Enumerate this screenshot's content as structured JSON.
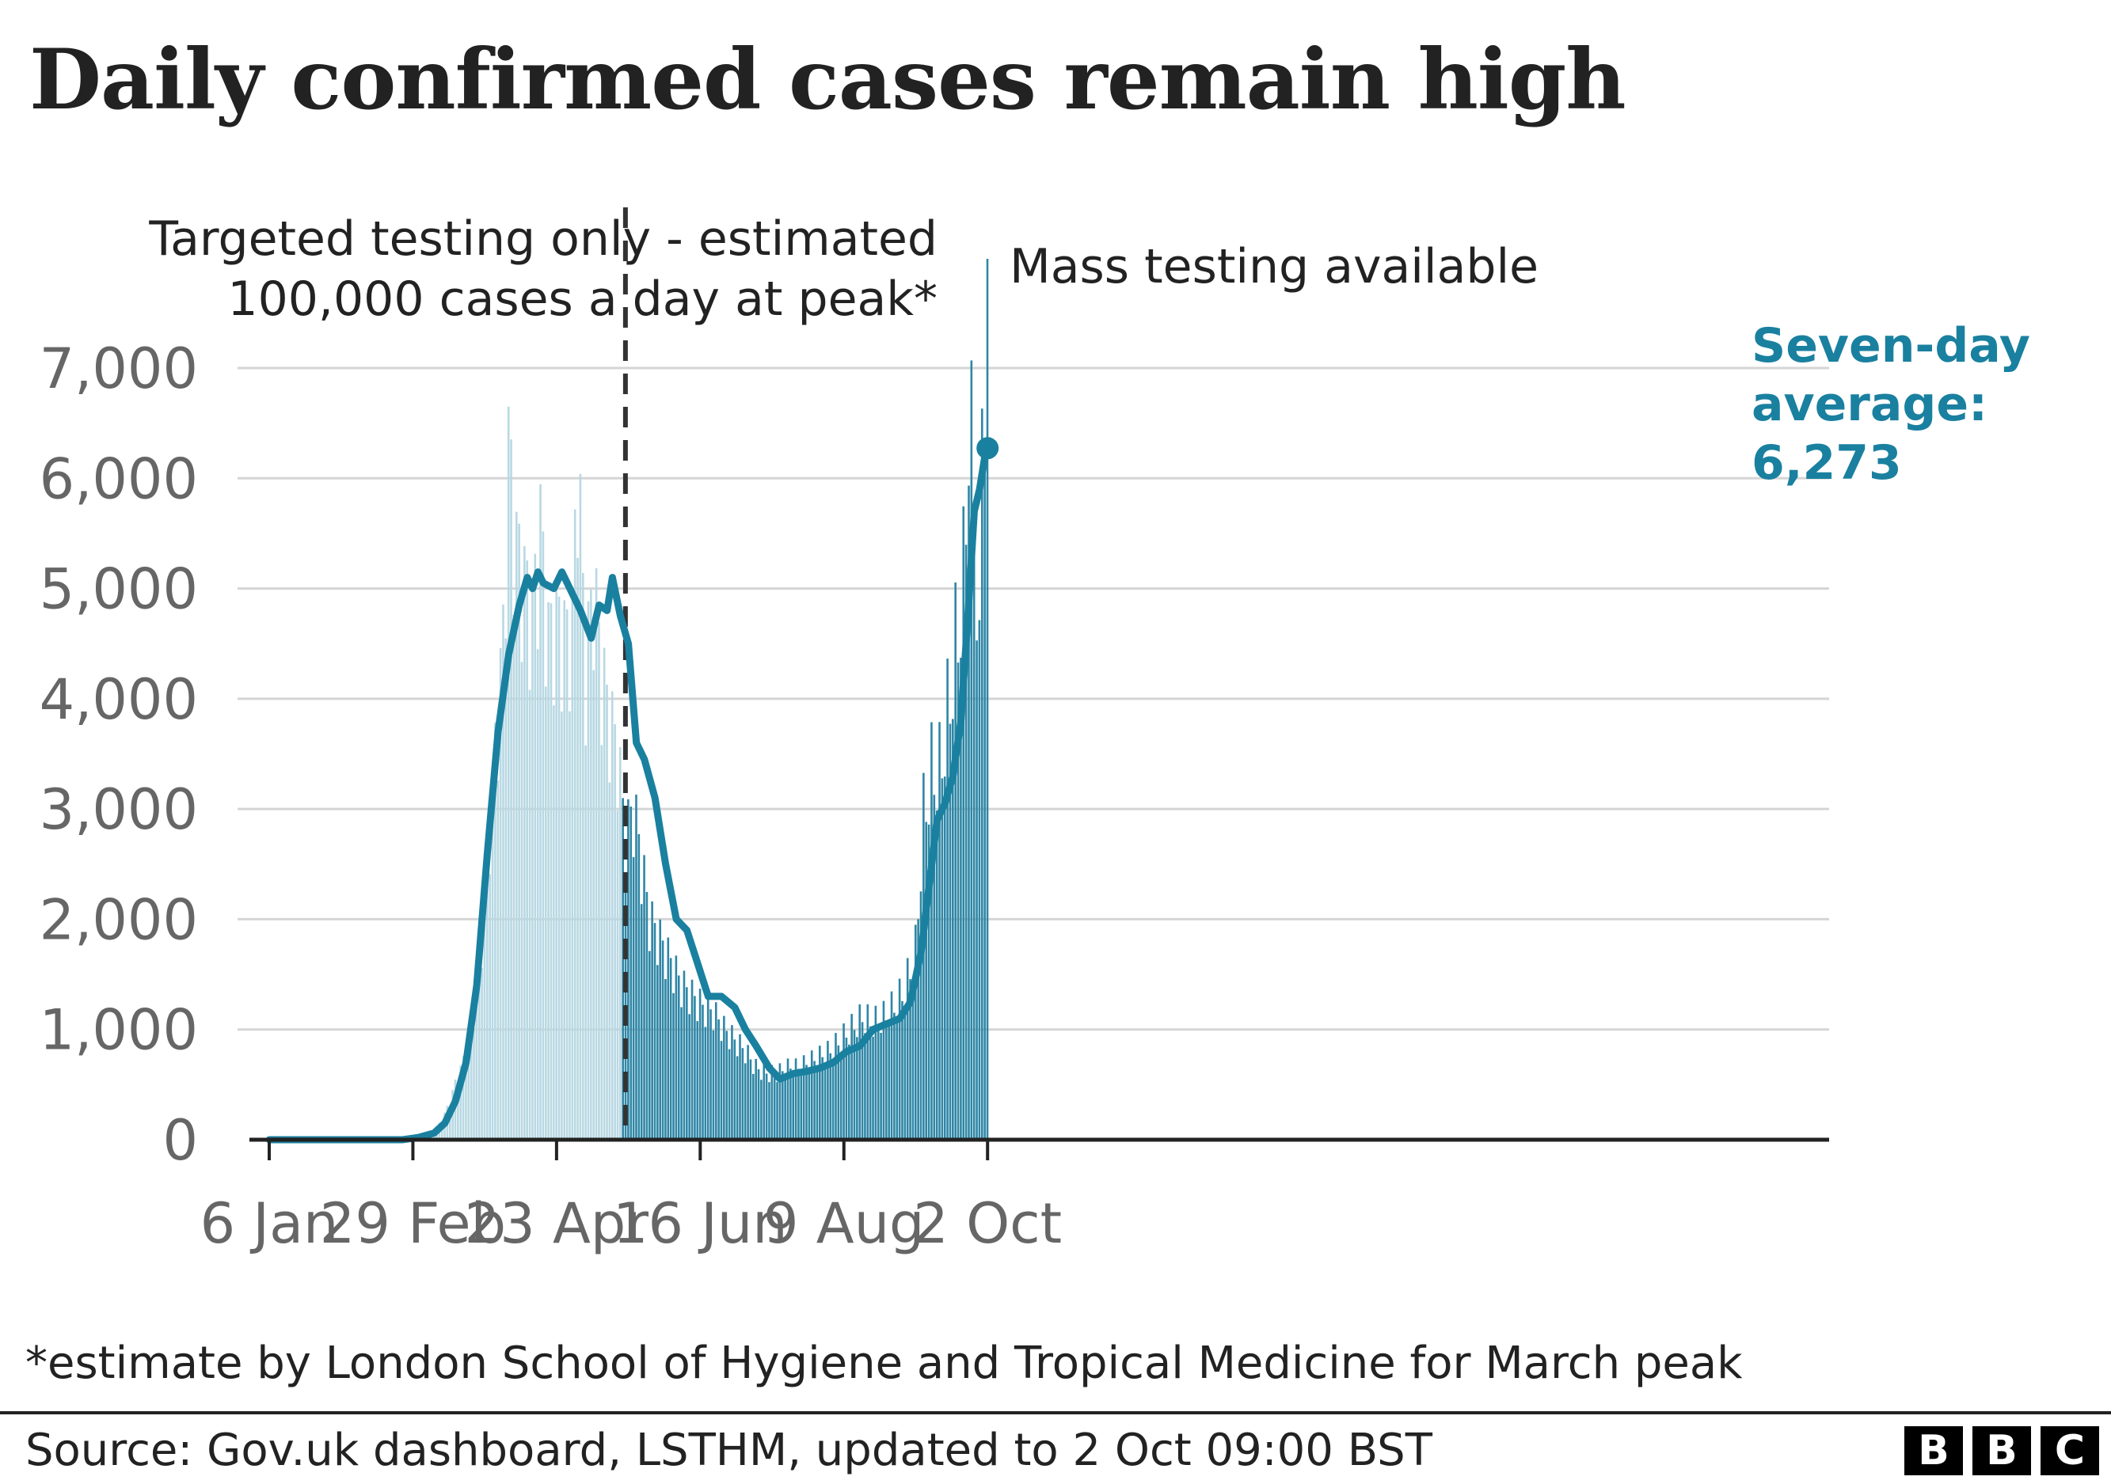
{
  "title": "Daily confirmed cases remain high",
  "annotations": {
    "before_line1": "Targeted testing only - estimated",
    "before_line2": "100,000 cases a day at peak*",
    "after": "Mass testing available",
    "average_line1": "Seven-day",
    "average_line2": "average:",
    "average_line3": "6,273"
  },
  "footnote": "*estimate by London School of Hygiene and Tropical Medicine for March peak",
  "source": "Source: Gov.uk dashboard, LSTHM, updated to 2 Oct 09:00 BST",
  "logo": [
    "B",
    "B",
    "C"
  ],
  "colors": {
    "bar_targeted": "#b8d8e3",
    "bar_mass": "#2e86a5",
    "average_line": "#1a80a0",
    "grid": "#d5d5d5",
    "divider": "#333333",
    "axis": "#222222"
  },
  "chart_data": {
    "type": "bar",
    "xlabel": "",
    "ylabel": "",
    "ylim": [
      0,
      7000
    ],
    "yticks": [
      0,
      1000,
      2000,
      3000,
      4000,
      5000,
      6000,
      7000
    ],
    "ytick_labels": [
      "0",
      "1,000",
      "2,000",
      "3,000",
      "4,000",
      "5,000",
      "6,000",
      "7,000"
    ],
    "xticks": [
      {
        "date": "2020-01-06",
        "label": "6 Jan"
      },
      {
        "date": "2020-02-29",
        "label": "29 Feb"
      },
      {
        "date": "2020-04-23",
        "label": "23 Apr"
      },
      {
        "date": "2020-06-16",
        "label": "16 Jun"
      },
      {
        "date": "2020-08-09",
        "label": "9 Aug"
      },
      {
        "date": "2020-10-02",
        "label": "2 Oct"
      }
    ],
    "x_range": [
      "2020-01-06",
      "2020-10-20"
    ],
    "testing_change_date": "2020-05-18",
    "grid": true,
    "series": [
      {
        "name": "Daily confirmed cases",
        "points": [
          [
            "2020-01-06",
            0
          ],
          [
            "2020-02-25",
            0
          ],
          [
            "2020-03-01",
            15
          ],
          [
            "2020-03-04",
            40
          ],
          [
            "2020-03-07",
            70
          ],
          [
            "2020-03-10",
            140
          ],
          [
            "2020-03-13",
            280
          ],
          [
            "2020-03-16",
            500
          ],
          [
            "2020-03-19",
            700
          ],
          [
            "2020-03-22",
            1000
          ],
          [
            "2020-03-25",
            1500
          ],
          [
            "2020-03-28",
            2500
          ],
          [
            "2020-03-31",
            3500
          ],
          [
            "2020-04-03",
            4500
          ],
          [
            "2020-04-05",
            6200
          ],
          [
            "2020-04-08",
            5300
          ],
          [
            "2020-04-11",
            5000
          ],
          [
            "2020-04-14",
            4700
          ],
          [
            "2020-04-17",
            5500
          ],
          [
            "2020-04-20",
            4500
          ],
          [
            "2020-04-23",
            4700
          ],
          [
            "2020-04-26",
            4500
          ],
          [
            "2020-04-29",
            4600
          ],
          [
            "2020-05-01",
            6200
          ],
          [
            "2020-05-04",
            4200
          ],
          [
            "2020-05-07",
            5000
          ],
          [
            "2020-05-10",
            4200
          ],
          [
            "2020-05-13",
            3800
          ],
          [
            "2020-05-16",
            3500
          ],
          [
            "2020-05-19",
            2700
          ],
          [
            "2020-05-22",
            3000
          ],
          [
            "2020-05-25",
            2500
          ],
          [
            "2020-05-28",
            2000
          ],
          [
            "2020-06-01",
            1800
          ],
          [
            "2020-06-05",
            1600
          ],
          [
            "2020-06-09",
            1400
          ],
          [
            "2020-06-13",
            1300
          ],
          [
            "2020-06-17",
            1200
          ],
          [
            "2020-06-21",
            1150
          ],
          [
            "2020-06-25",
            1000
          ],
          [
            "2020-06-29",
            900
          ],
          [
            "2020-07-03",
            800
          ],
          [
            "2020-07-07",
            650
          ],
          [
            "2020-07-11",
            600
          ],
          [
            "2020-07-15",
            600
          ],
          [
            "2020-07-19",
            650
          ],
          [
            "2020-07-23",
            650
          ],
          [
            "2020-07-27",
            700
          ],
          [
            "2020-07-31",
            750
          ],
          [
            "2020-08-04",
            800
          ],
          [
            "2020-08-08",
            900
          ],
          [
            "2020-08-12",
            1000
          ],
          [
            "2020-08-16",
            1100
          ],
          [
            "2020-08-20",
            1050
          ],
          [
            "2020-08-24",
            1100
          ],
          [
            "2020-08-28",
            1200
          ],
          [
            "2020-09-01",
            1350
          ],
          [
            "2020-09-05",
            1700
          ],
          [
            "2020-09-08",
            2900
          ],
          [
            "2020-09-11",
            3300
          ],
          [
            "2020-09-14",
            3300
          ],
          [
            "2020-09-17",
            3800
          ],
          [
            "2020-09-20",
            4400
          ],
          [
            "2020-09-23",
            5000
          ],
          [
            "2020-09-25",
            6500
          ],
          [
            "2020-09-27",
            5800
          ],
          [
            "2020-09-29",
            4100
          ],
          [
            "2020-09-30",
            7100
          ],
          [
            "2020-10-01",
            6900
          ],
          [
            "2020-10-02",
            6950
          ]
        ]
      },
      {
        "name": "Seven-day average",
        "points": [
          [
            "2020-01-06",
            0
          ],
          [
            "2020-02-25",
            0
          ],
          [
            "2020-03-02",
            20
          ],
          [
            "2020-03-08",
            60
          ],
          [
            "2020-03-12",
            150
          ],
          [
            "2020-03-16",
            350
          ],
          [
            "2020-03-20",
            700
          ],
          [
            "2020-03-24",
            1400
          ],
          [
            "2020-03-28",
            2600
          ],
          [
            "2020-04-01",
            3700
          ],
          [
            "2020-04-05",
            4400
          ],
          [
            "2020-04-09",
            4850
          ],
          [
            "2020-04-12",
            5100
          ],
          [
            "2020-04-14",
            5000
          ],
          [
            "2020-04-16",
            5150
          ],
          [
            "2020-04-18",
            5050
          ],
          [
            "2020-04-22",
            5000
          ],
          [
            "2020-04-25",
            5150
          ],
          [
            "2020-04-28",
            5000
          ],
          [
            "2020-05-02",
            4800
          ],
          [
            "2020-05-06",
            4550
          ],
          [
            "2020-05-09",
            4850
          ],
          [
            "2020-05-12",
            4800
          ],
          [
            "2020-05-14",
            5100
          ],
          [
            "2020-05-17",
            4750
          ],
          [
            "2020-05-20",
            4500
          ],
          [
            "2020-05-23",
            3600
          ],
          [
            "2020-05-26",
            3450
          ],
          [
            "2020-05-30",
            3100
          ],
          [
            "2020-06-03",
            2500
          ],
          [
            "2020-06-07",
            2000
          ],
          [
            "2020-06-11",
            1900
          ],
          [
            "2020-06-15",
            1600
          ],
          [
            "2020-06-19",
            1300
          ],
          [
            "2020-06-24",
            1300
          ],
          [
            "2020-06-29",
            1200
          ],
          [
            "2020-07-03",
            1000
          ],
          [
            "2020-07-07",
            850
          ],
          [
            "2020-07-12",
            650
          ],
          [
            "2020-07-16",
            550
          ],
          [
            "2020-07-21",
            600
          ],
          [
            "2020-07-26",
            620
          ],
          [
            "2020-07-31",
            650
          ],
          [
            "2020-08-05",
            700
          ],
          [
            "2020-08-10",
            800
          ],
          [
            "2020-08-15",
            850
          ],
          [
            "2020-08-20",
            1000
          ],
          [
            "2020-08-25",
            1050
          ],
          [
            "2020-08-30",
            1100
          ],
          [
            "2020-09-03",
            1250
          ],
          [
            "2020-09-07",
            1700
          ],
          [
            "2020-09-10",
            2300
          ],
          [
            "2020-09-13",
            2900
          ],
          [
            "2020-09-16",
            3050
          ],
          [
            "2020-09-19",
            3300
          ],
          [
            "2020-09-22",
            3800
          ],
          [
            "2020-09-25",
            4900
          ],
          [
            "2020-09-27",
            5700
          ],
          [
            "2020-09-29",
            5900
          ],
          [
            "2020-10-01",
            6200
          ],
          [
            "2020-10-02",
            6273
          ]
        ]
      }
    ]
  }
}
